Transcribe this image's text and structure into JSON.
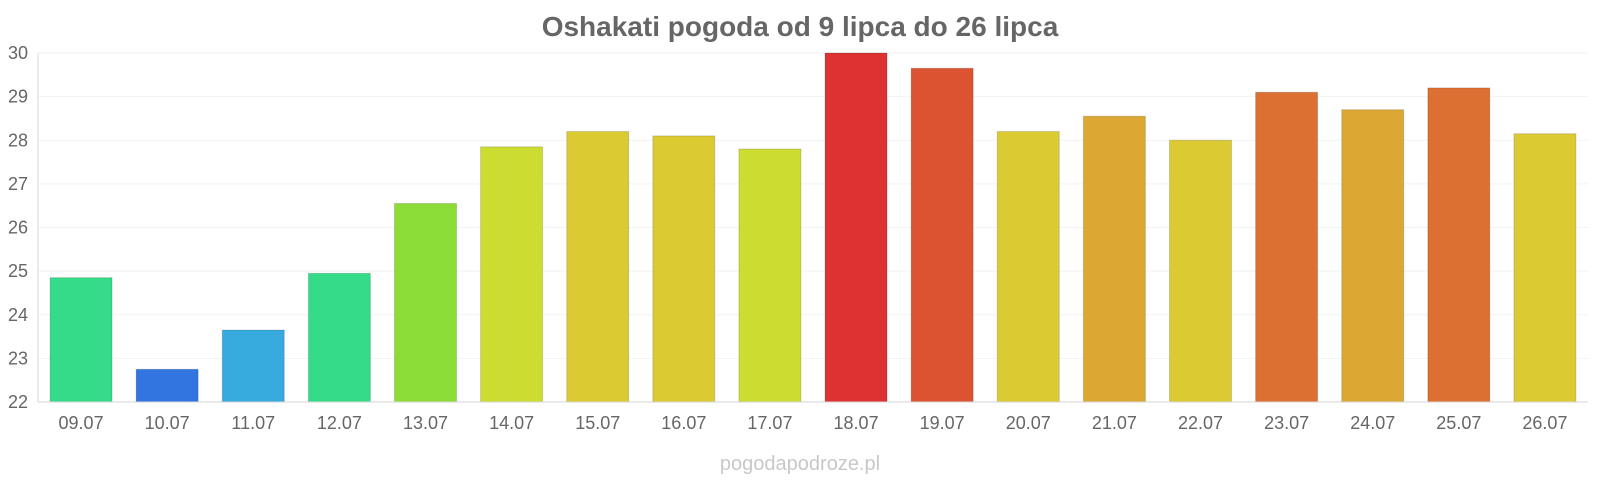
{
  "chart_data": {
    "type": "bar",
    "title": "Oshakati pogoda od 9 lipca do 26 lipca",
    "xlabel": "",
    "ylabel": "",
    "ylim": [
      22,
      30
    ],
    "yticks": [
      22,
      23,
      24,
      25,
      26,
      27,
      28,
      29,
      30
    ],
    "grid": true,
    "categories": [
      "09.07",
      "10.07",
      "11.07",
      "12.07",
      "13.07",
      "14.07",
      "15.07",
      "16.07",
      "17.07",
      "18.07",
      "19.07",
      "20.07",
      "21.07",
      "22.07",
      "23.07",
      "24.07",
      "25.07",
      "26.07"
    ],
    "values": [
      24.85,
      22.75,
      23.65,
      24.95,
      26.55,
      27.85,
      28.2,
      28.1,
      27.8,
      30.0,
      29.65,
      28.2,
      28.55,
      28.0,
      29.1,
      28.7,
      29.2,
      28.15
    ],
    "colors": [
      "#36db8a",
      "#3275e0",
      "#36a9dd",
      "#36db8a",
      "#8bdc36",
      "#ccdc30",
      "#dcca33",
      "#dcca33",
      "#ccdc30",
      "#dc3232",
      "#dc5332",
      "#dcca33",
      "#dca833",
      "#dcca33",
      "#dc7032",
      "#dca833",
      "#dc7032",
      "#dcca33"
    ]
  },
  "watermark": "pogodapodroze.pl"
}
